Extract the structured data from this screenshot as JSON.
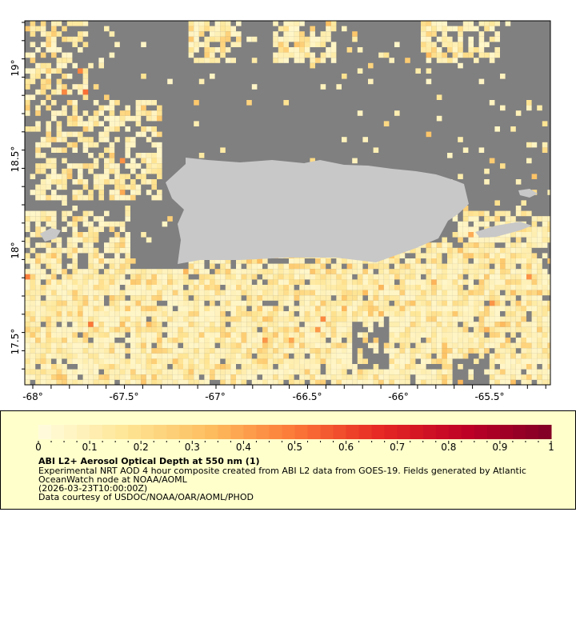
{
  "map": {
    "latitude_ticks": [
      "19°",
      "18.5°",
      "18°",
      "17.5°"
    ],
    "longitude_ticks": [
      "-68°",
      "-67.5°",
      "-67°",
      "-66.5°",
      "-66°",
      "-65.5°"
    ],
    "extent": {
      "lon": [
        -68.08,
        -65.18
      ],
      "lat": [
        17.28,
        19.26
      ]
    },
    "colors": {
      "no_data": "#808080",
      "land": "#c8c8c8",
      "border": "#000000"
    }
  },
  "legend": {
    "colorbar_ticks": [
      "0",
      "0.1",
      "0.2",
      "0.3",
      "0.4",
      "0.5",
      "0.6",
      "0.7",
      "0.8",
      "0.9",
      "1"
    ],
    "range": [
      0,
      1
    ],
    "color_start": "#fffde0",
    "color_end": "#800026",
    "title": "ABI L2+ Aerosol Optical Depth at 550 nm (1)",
    "description_line1": "Experimental NRT AOD 4 hour composite created from ABI L2 data from GOES-19. Fields generated by Atlantic",
    "description_line2": "OceanWatch node at NOAA/AOML",
    "time": "(2026-03-23T10:00:00Z)",
    "credit": "Data courtesy of USDOC/NOAA/OAR/AOML/PHOD"
  }
}
